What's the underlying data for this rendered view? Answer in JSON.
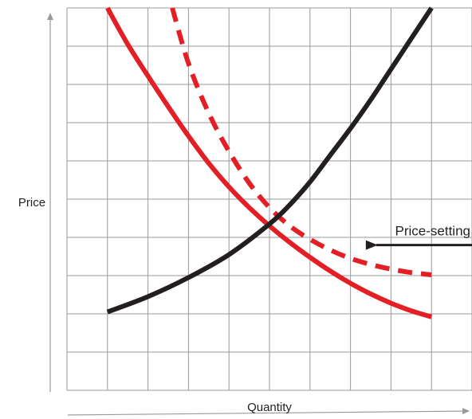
{
  "chart_data": {
    "type": "line",
    "title": "",
    "xlabel": "Quantity",
    "ylabel": "Price",
    "xlim": [
      0,
      10
    ],
    "ylim": [
      0,
      10
    ],
    "grid": true,
    "x_tick_labels": [],
    "y_tick_labels": [],
    "series": [
      {
        "color": "#e31e24",
        "style": "solid",
        "x": [
          1,
          1.5,
          2,
          2.5,
          3,
          3.5,
          4,
          4.5,
          5,
          5.5,
          6,
          6.5,
          7,
          7.5,
          8,
          8.5,
          9
        ],
        "y": [
          9,
          8.05,
          7.22,
          6.42,
          5.65,
          4.94,
          4.32,
          3.78,
          3.3,
          2.87,
          2.48,
          2.12,
          1.8,
          1.52,
          1.28,
          1.08,
          0.92
        ]
      },
      {
        "color": "#e31e24",
        "style": "dashed",
        "x": [
          2.6,
          3,
          3.5,
          4,
          4.5,
          5,
          5.5,
          6,
          6.5,
          7,
          7.5,
          8,
          8.5,
          9
        ],
        "y": [
          9,
          7.55,
          6.25,
          5.25,
          4.42,
          3.78,
          3.3,
          2.95,
          2.67,
          2.45,
          2.29,
          2.17,
          2.08,
          2.02
        ]
      },
      {
        "color": "#231f20",
        "style": "solid",
        "x": [
          1,
          2,
          3,
          4,
          5,
          5.5,
          6,
          6.5,
          7,
          7.5,
          8,
          8.5,
          9
        ],
        "y": [
          1.05,
          1.45,
          1.95,
          2.55,
          3.35,
          3.85,
          4.45,
          5.15,
          5.85,
          6.6,
          7.4,
          8.2,
          9
        ]
      }
    ],
    "annotations": [
      {
        "text": "Price-setting",
        "arrow_from": [
          10.1,
          2.8
        ],
        "arrow_to": [
          7.3,
          2.8
        ],
        "arrow_color": "#231f20"
      }
    ]
  }
}
